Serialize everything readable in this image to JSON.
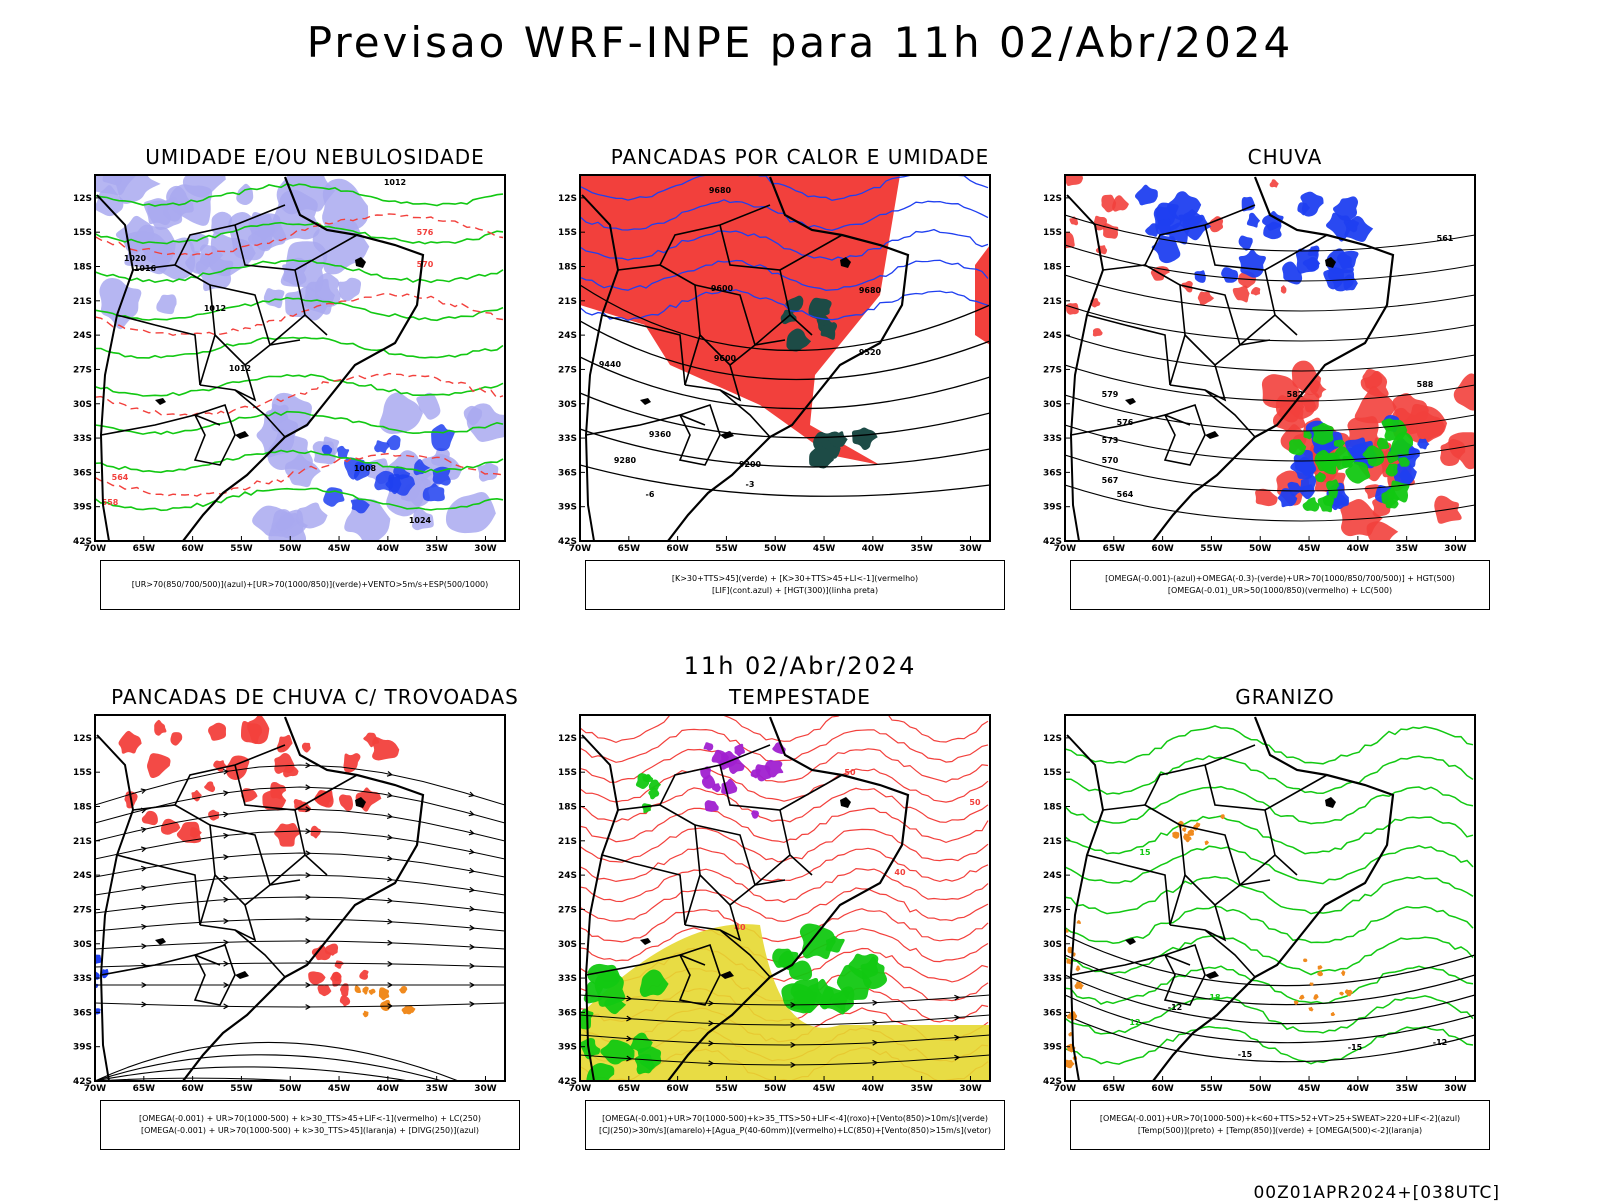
{
  "header": {
    "title": "Previsao WRF-INPE  para 11h 02/Abr/2024",
    "mid_title": "11h 02/Abr/2024",
    "footer": "00Z01APR2024+[038UTC]"
  },
  "colors": {
    "blue": "#1f3ff0",
    "lavender": "#a9a9f0",
    "green": "#12c812",
    "red": "#f2403c",
    "orange": "#f08a1e",
    "purple": "#a020d0",
    "yellow": "#e6d830",
    "darkteal": "#1d4b46",
    "black": "#000000"
  },
  "chart_data": [
    {
      "type": "heatmap",
      "title": "UMIDADE E/OU NEBULOSIDADE",
      "legend": [
        "[UR>70(850/700/500)](azul)+[UR>70(1000/850)](verde)+VENTO>5m/s+ESP(500/1000)"
      ],
      "xlim": [
        -70,
        -28
      ],
      "ylim": [
        -42,
        -10
      ],
      "x_ticks": [
        "70W",
        "65W",
        "60W",
        "55W",
        "50W",
        "45W",
        "40W",
        "35W",
        "30W"
      ],
      "y_ticks": [
        "12S",
        "15S",
        "18S",
        "21S",
        "24S",
        "27S",
        "30S",
        "33S",
        "36S",
        "39S",
        "42S"
      ],
      "contour_labels": [
        "1012",
        "1020",
        "1016",
        "1012",
        "1012",
        "1008",
        "1024",
        "576",
        "570",
        "564",
        "558"
      ]
    },
    {
      "type": "heatmap",
      "title": "PANCADAS POR CALOR E UMIDADE",
      "legend": [
        "[K>30+TTS>45](verde) + [K>30+TTS>45+LI<-1](vermelho)",
        "[LIF](cont.azul) + [HGT(300)](linha preta)"
      ],
      "xlim": [
        -70,
        -28
      ],
      "ylim": [
        -42,
        -10
      ],
      "x_ticks": [
        "70W",
        "65W",
        "60W",
        "55W",
        "50W",
        "45W",
        "40W",
        "35W",
        "30W"
      ],
      "y_ticks": [
        "12S",
        "15S",
        "18S",
        "21S",
        "24S",
        "27S",
        "30S",
        "33S",
        "36S",
        "39S",
        "42S"
      ],
      "contour_labels": [
        "9680",
        "9600",
        "9520",
        "9440",
        "9360",
        "9280",
        "9200",
        "-6",
        "-3"
      ]
    },
    {
      "type": "heatmap",
      "title": "CHUVA",
      "legend": [
        "[OMEGA(-0.001)-(azul)+OMEGA(-0.3)-(verde)+UR>70(1000/850/700/500)] + HGT(500)",
        "[OMEGA(-0.01)_UR>50(1000/850)(vermelho) + LC(500)"
      ],
      "xlim": [
        -70,
        -28
      ],
      "ylim": [
        -42,
        -10
      ],
      "x_ticks": [
        "70W",
        "65W",
        "60W",
        "55W",
        "50W",
        "45W",
        "40W",
        "35W",
        "30W"
      ],
      "y_ticks": [
        "12S",
        "15S",
        "18S",
        "21S",
        "24S",
        "27S",
        "30S",
        "33S",
        "36S",
        "39S",
        "42S"
      ],
      "contour_labels": [
        "588",
        "582",
        "579",
        "576",
        "573",
        "570",
        "567",
        "564",
        "561"
      ]
    },
    {
      "type": "heatmap",
      "title": "PANCADAS DE CHUVA C/ TROVOADAS",
      "legend": [
        "[OMEGA(-0.001) + UR>70(1000-500) + k>30_TTS>45+LIF<-1](vermelho) + LC(250)",
        "[OMEGA(-0.001) + UR>70(1000-500) + k>30_TTS>45](laranja) + [DIVG(250)](azul)"
      ],
      "xlim": [
        -70,
        -28
      ],
      "ylim": [
        -42,
        -10
      ],
      "x_ticks": [
        "70W",
        "65W",
        "60W",
        "55W",
        "50W",
        "45W",
        "40W",
        "35W",
        "30W"
      ],
      "y_ticks": [
        "12S",
        "15S",
        "18S",
        "21S",
        "24S",
        "27S",
        "30S",
        "33S",
        "36S",
        "39S",
        "42S"
      ],
      "contour_labels": []
    },
    {
      "type": "heatmap",
      "title": "TEMPESTADE",
      "legend": [
        "[OMEGA(-0.001)+UR>70(1000-500)+k>35_TTS>50+LIF<-4](roxo)+[Vento(850)>10m/s](verde)",
        "[CJ(250)>30m/s](amarelo)+[Agua_P(40-60mm)](vermelho)+LC(850)+[Vento(850)>15m/s](vetor)"
      ],
      "xlim": [
        -70,
        -28
      ],
      "ylim": [
        -42,
        -10
      ],
      "x_ticks": [
        "70W",
        "65W",
        "60W",
        "55W",
        "50W",
        "45W",
        "40W",
        "35W",
        "30W"
      ],
      "y_ticks": [
        "12S",
        "15S",
        "18S",
        "21S",
        "24S",
        "27S",
        "30S",
        "33S",
        "36S",
        "39S",
        "42S"
      ],
      "contour_labels": [
        "50",
        "40",
        "40",
        "50"
      ]
    },
    {
      "type": "heatmap",
      "title": "GRANIZO",
      "legend": [
        "[OMEGA(-0.001)+UR>70(1000-500)+k<60+TTS>52+VT>25+SWEAT>220+LIF<-2](azul)",
        "[Temp(500)](preto) + [Temp(850)](verde) + [OMEGA(500)<-2](laranja)"
      ],
      "xlim": [
        -70,
        -28
      ],
      "ylim": [
        -42,
        -10
      ],
      "x_ticks": [
        "70W",
        "65W",
        "60W",
        "55W",
        "50W",
        "45W",
        "40W",
        "35W",
        "30W"
      ],
      "y_ticks": [
        "12S",
        "15S",
        "18S",
        "21S",
        "24S",
        "27S",
        "30S",
        "33S",
        "36S",
        "39S",
        "42S"
      ],
      "contour_labels": [
        "15",
        "12",
        "18",
        "-12",
        "-15",
        "-12",
        "-15"
      ]
    }
  ]
}
